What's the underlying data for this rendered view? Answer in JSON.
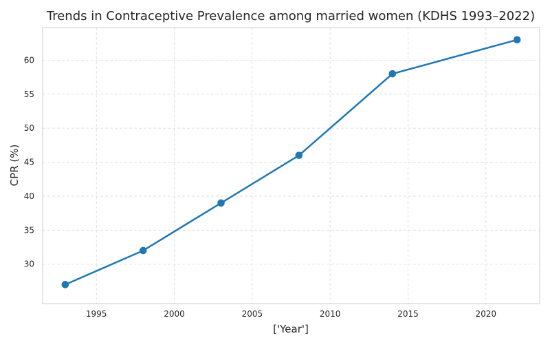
{
  "chart_data": {
    "type": "line",
    "title": "Trends in Contraceptive Prevalence among married women (KDHS 1993–2022)",
    "xlabel": "['Year']",
    "ylabel": "CPR (%)",
    "x": [
      1993,
      1998,
      2003,
      2008,
      2014,
      2022
    ],
    "series": [
      {
        "values": [
          27,
          32,
          39,
          46,
          58,
          63
        ],
        "color": "#1f77b4",
        "marker": "circle"
      }
    ],
    "xlim": [
      1991.55,
      2023.45
    ],
    "ylim": [
      24.2,
      64.8
    ],
    "xticks": [
      1995,
      2000,
      2005,
      2010,
      2015,
      2020
    ],
    "yticks": [
      30,
      35,
      40,
      45,
      50,
      55,
      60
    ],
    "grid": true,
    "legend": "none"
  }
}
